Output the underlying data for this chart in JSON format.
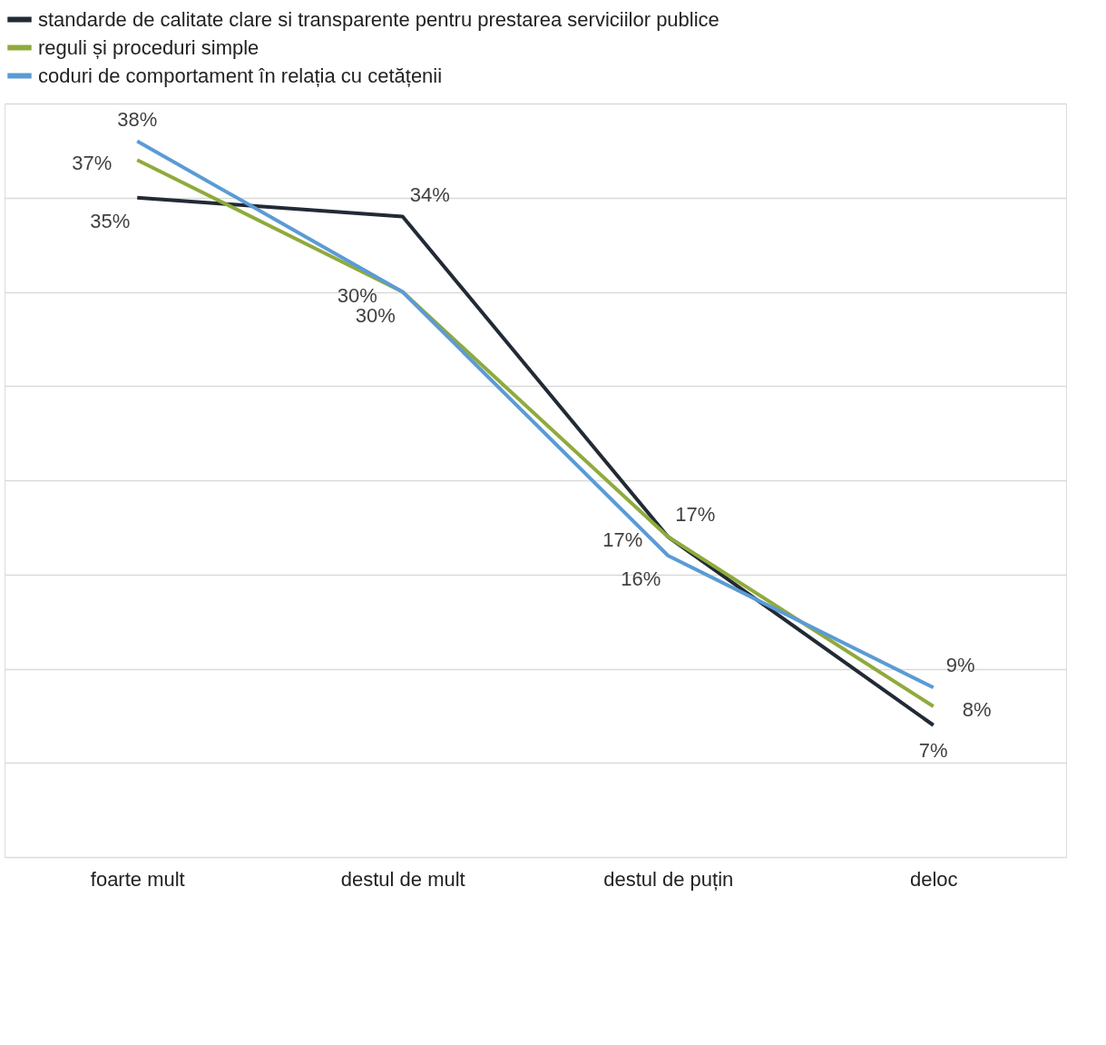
{
  "chart_data": {
    "type": "line",
    "categories": [
      "foarte mult",
      "destul de mult",
      "destul de puțin",
      "deloc"
    ],
    "series": [
      {
        "name": "standarde de calitate clare si transparente pentru prestarea serviciilor publice",
        "color": "#222a35",
        "values": [
          35,
          34,
          17,
          7
        ],
        "value_labels": [
          "35%",
          "34%",
          "17%",
          "7%"
        ]
      },
      {
        "name": "reguli și proceduri simple",
        "color": "#8faa3c",
        "values": [
          37,
          30,
          17,
          8
        ],
        "value_labels": [
          "37%",
          "30%",
          "17%",
          "8%"
        ]
      },
      {
        "name": "coduri de comportament în relația cu cetățenii",
        "color": "#5b9bd5",
        "values": [
          38,
          30,
          16,
          9
        ],
        "value_labels": [
          "38%",
          "30%",
          "16%",
          "9%"
        ]
      }
    ],
    "ylim": [
      0,
      40
    ],
    "yticks": [
      {
        "value": 0,
        "label": null
      },
      {
        "value": 5,
        "label": null
      },
      {
        "value": 10,
        "label": null
      },
      {
        "value": 15,
        "label": null
      },
      {
        "value": 20,
        "label": null
      },
      {
        "value": 25,
        "label": null
      },
      {
        "value": 30,
        "label": null
      },
      {
        "value": 35,
        "label": null
      },
      {
        "value": 40,
        "label": null
      }
    ],
    "grid": "y",
    "legend": "top",
    "tick_labels": "x",
    "marker": "none",
    "line_style": "solid"
  }
}
